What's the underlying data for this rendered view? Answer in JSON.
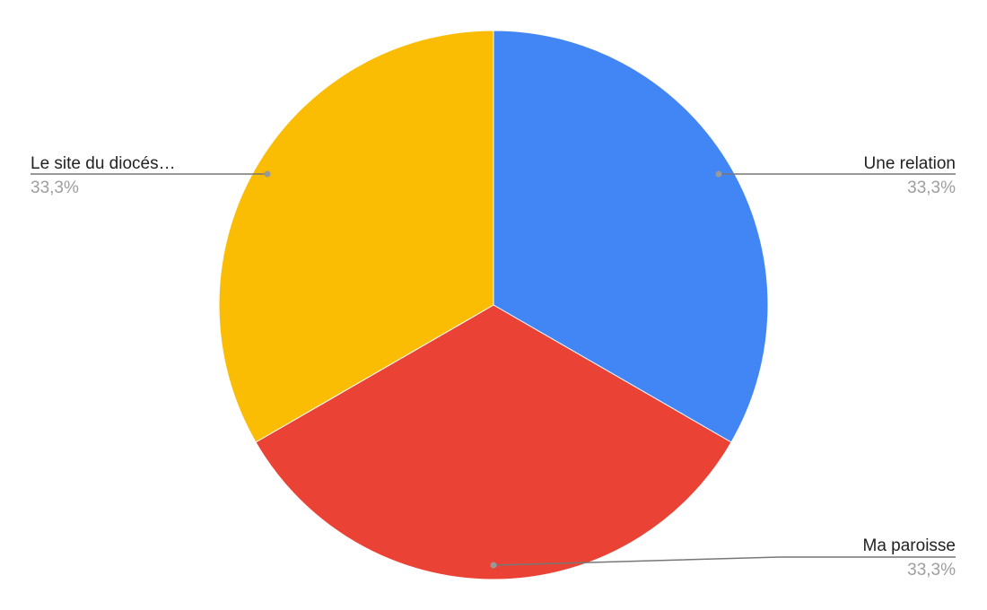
{
  "chart_data": {
    "type": "pie",
    "start_angle": "top, clockwise",
    "slices": [
      {
        "label": "Une relation",
        "value": 33.3,
        "display": "33,3%",
        "color": "#4285F4"
      },
      {
        "label": "Ma paroisse",
        "value": 33.3,
        "display": "33,3%",
        "color": "#EA4335"
      },
      {
        "label": "Le site du diocés…",
        "value": 33.3,
        "display": "33,3%",
        "color": "#FBBC04"
      }
    ],
    "legend": "labeled leader lines"
  }
}
